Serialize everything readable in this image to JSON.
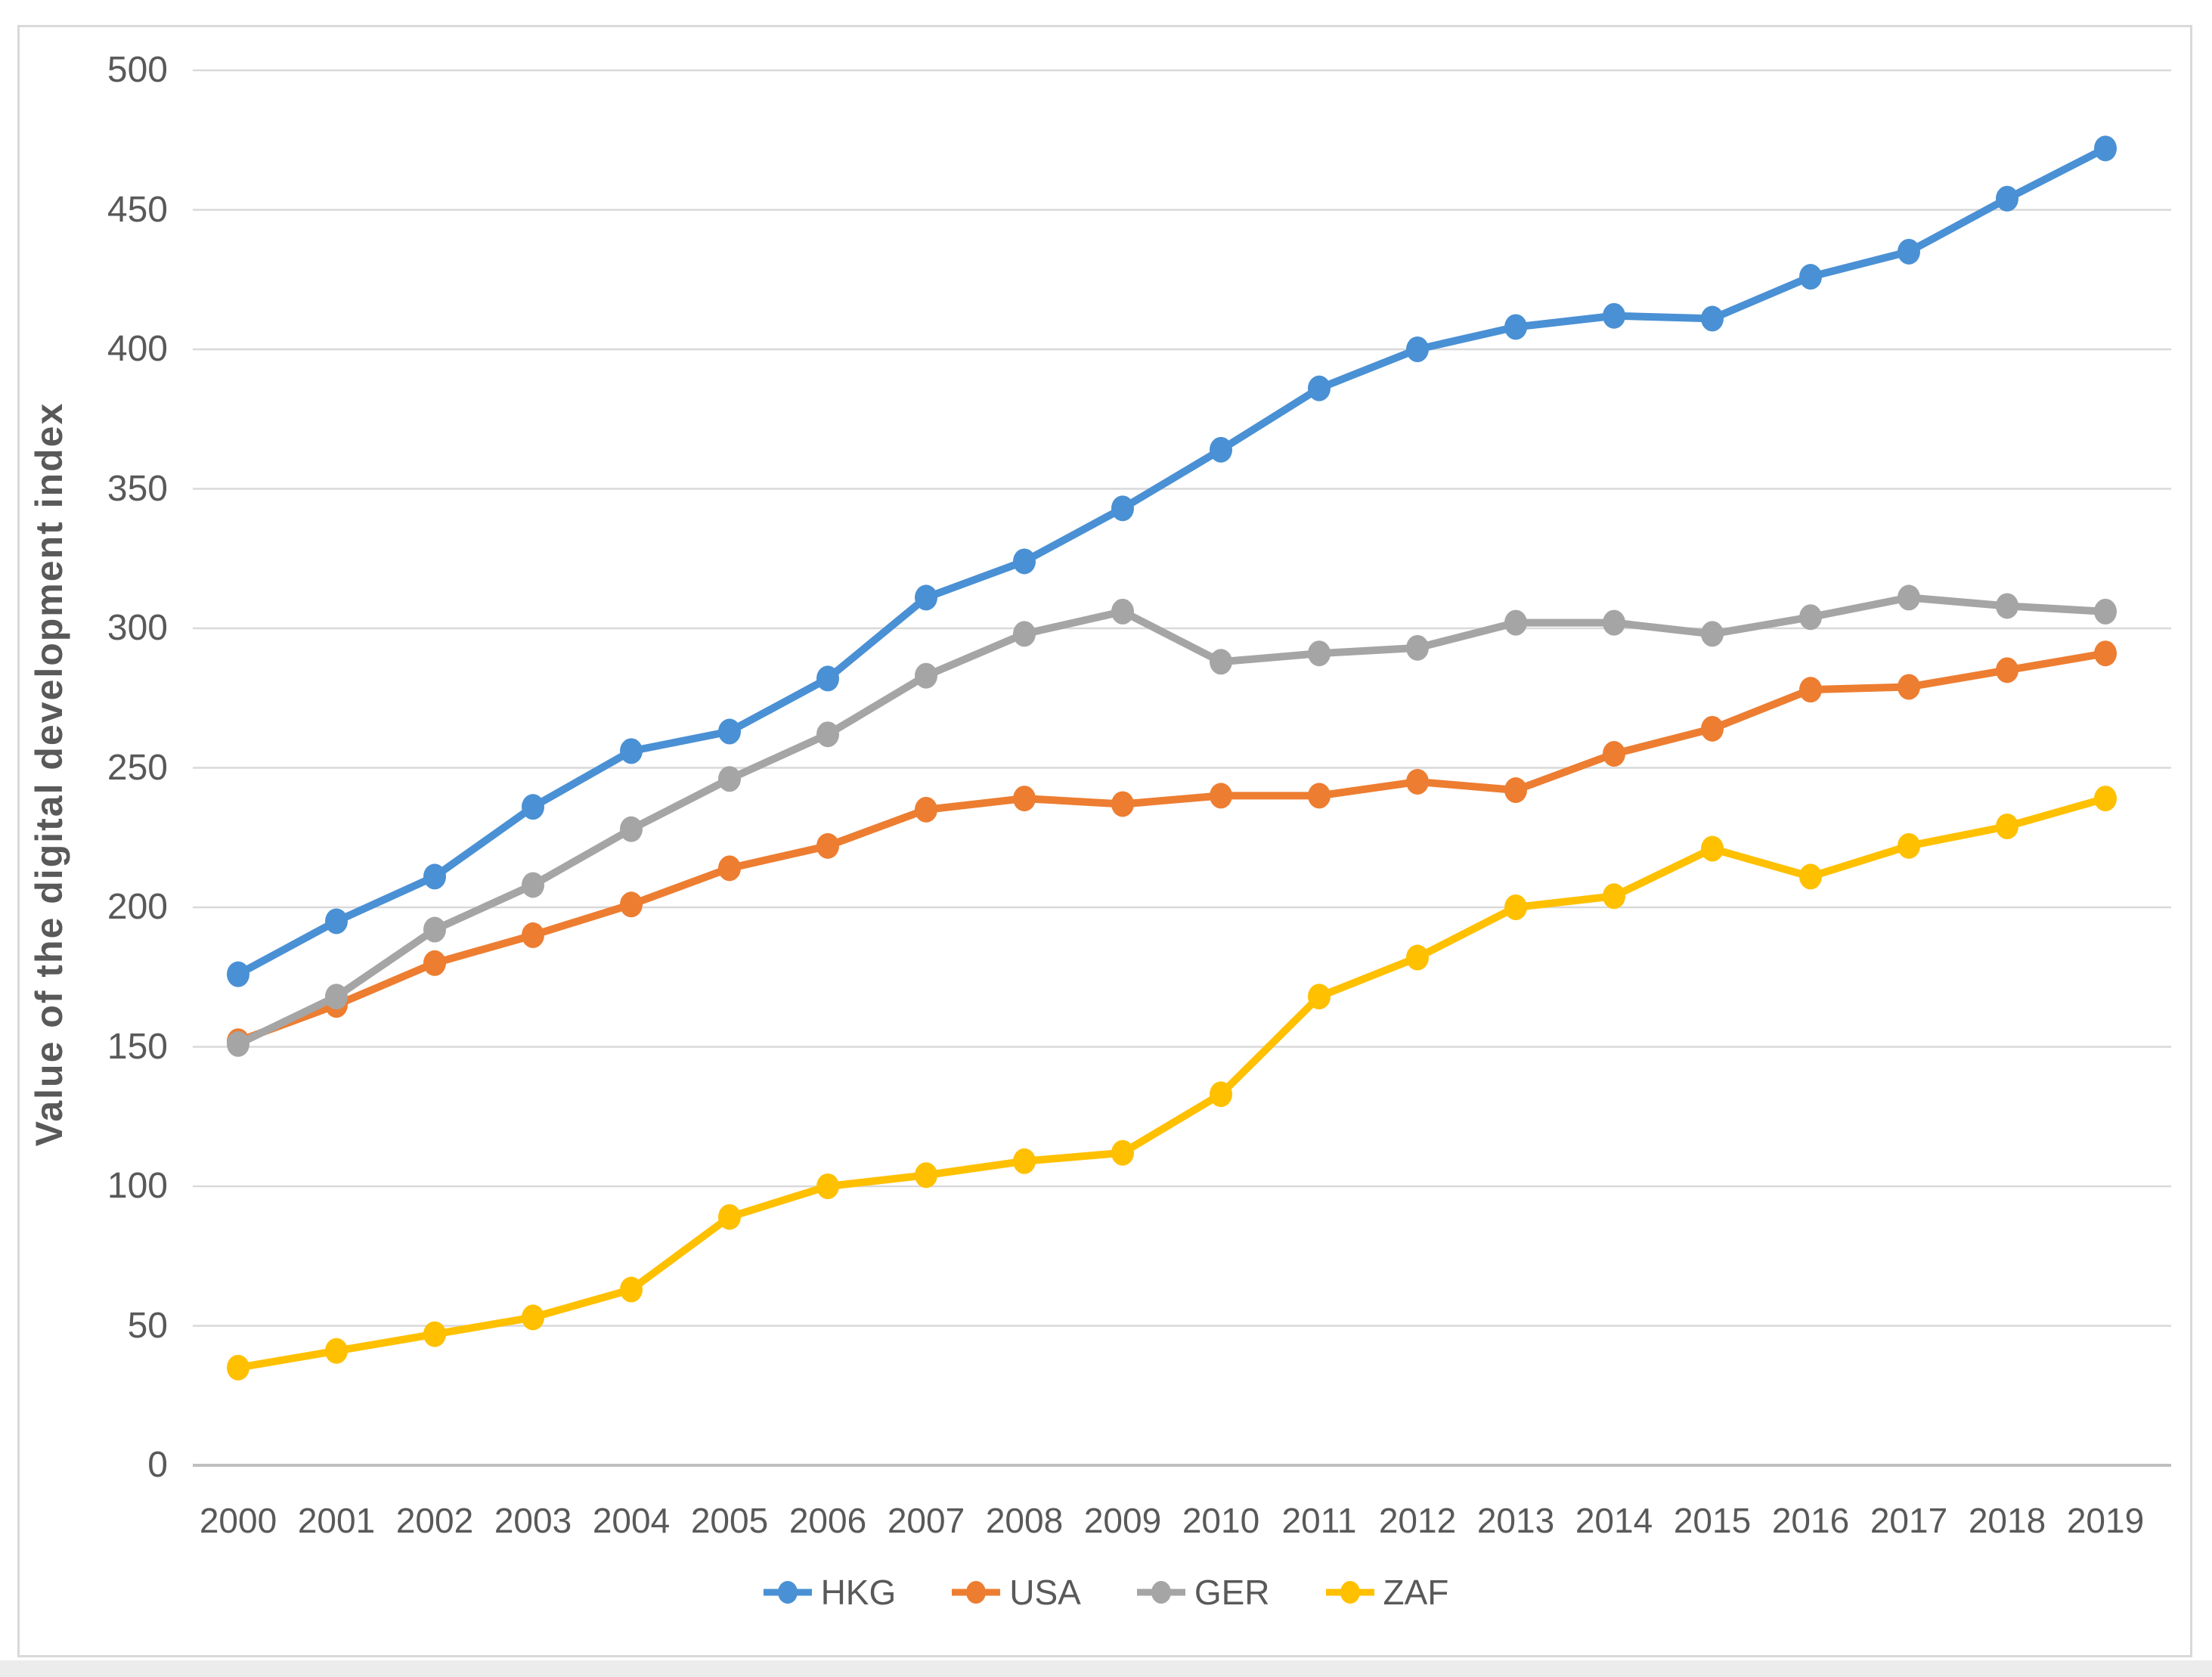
{
  "chart_data": {
    "type": "line",
    "title": "",
    "xlabel": "",
    "ylabel": "Value of the digital development index",
    "ylim": [
      0,
      500
    ],
    "ytick_step": 50,
    "grid": true,
    "legend_position": "bottom",
    "categories": [
      "2000",
      "2001",
      "2002",
      "2003",
      "2004",
      "2005",
      "2006",
      "2007",
      "2008",
      "2009",
      "2010",
      "2011",
      "2012",
      "2013",
      "2014",
      "2015",
      "2016",
      "2017",
      "2018",
      "2019"
    ],
    "series": [
      {
        "name": "HKG",
        "color": "#4A90D4",
        "values": [
          176,
          195,
          211,
          236,
          256,
          263,
          282,
          311,
          324,
          343,
          364,
          386,
          400,
          408,
          412,
          411,
          426,
          435,
          454,
          472
        ]
      },
      {
        "name": "USA",
        "color": "#ED7D31",
        "values": [
          152,
          165,
          180,
          190,
          201,
          214,
          222,
          235,
          239,
          237,
          240,
          240,
          245,
          242,
          255,
          264,
          278,
          279,
          285,
          291
        ]
      },
      {
        "name": "GER",
        "color": "#A5A5A5",
        "values": [
          151,
          168,
          192,
          208,
          228,
          246,
          262,
          283,
          298,
          306,
          288,
          291,
          293,
          302,
          302,
          298,
          304,
          311,
          308,
          306
        ]
      },
      {
        "name": "ZAF",
        "color": "#FFC000",
        "values": [
          35,
          41,
          47,
          53,
          63,
          89,
          100,
          104,
          109,
          112,
          133,
          168,
          182,
          200,
          204,
          221,
          211,
          222,
          229,
          239
        ]
      }
    ],
    "colors": {
      "gridline": "#D9D9D9",
      "axis_line": "#BFBFBF",
      "tick_label": "#595959",
      "frame_border": "#D9D9D9"
    }
  }
}
